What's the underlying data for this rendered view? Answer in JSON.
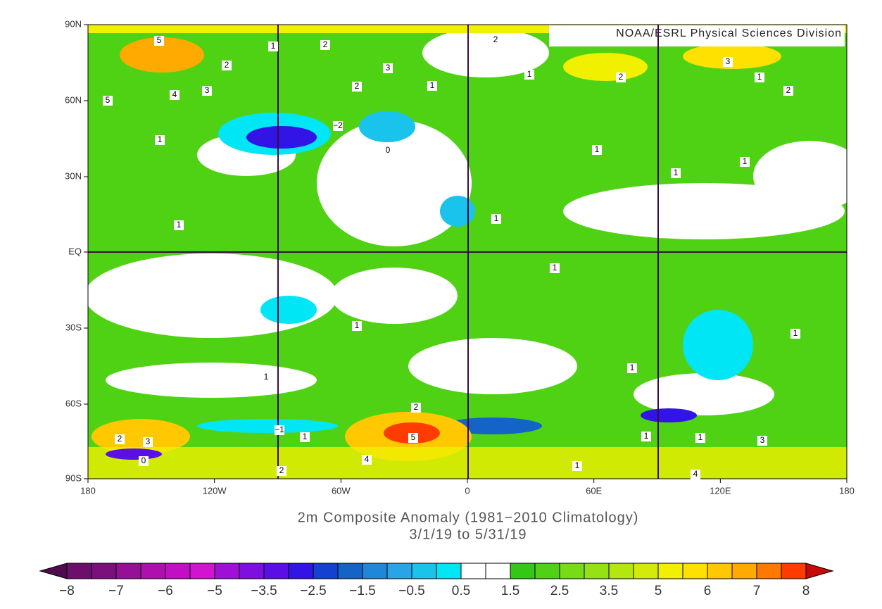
{
  "header": {
    "credit": "NOAA/ESRL Physical Sciences Division"
  },
  "map": {
    "lat_labels": [
      "90N",
      "60N",
      "30N",
      "EQ",
      "30S",
      "60S",
      "90S"
    ],
    "lon_labels": [
      "180",
      "120W",
      "60W",
      "0",
      "60E",
      "120E",
      "180"
    ],
    "contour_labels": [
      "5",
      "2",
      "1",
      "2",
      "3",
      "2",
      "3",
      "1",
      "2",
      "1",
      "5",
      "4",
      "3",
      "2",
      "1",
      "2",
      "1",
      "−2",
      "0",
      "1",
      "1",
      "1",
      "1",
      "1",
      "1",
      "1",
      "1",
      "1",
      "1",
      "2",
      "−1",
      "1",
      "5",
      "4",
      "1",
      "1",
      "3",
      "1",
      "4",
      "2",
      "3",
      "2",
      "0"
    ]
  },
  "caption": {
    "line1": "2m   Composite Anomaly (1981−2010 Climatology)",
    "line2": "3/1/19  to 5/31/19"
  },
  "colorbar": {
    "labels": [
      "−8",
      "−7",
      "−6",
      "−5",
      "−3.5",
      "−2.5",
      "−1.5",
      "−0.5",
      "0.5",
      "1.5",
      "2.5",
      "3.5",
      "5",
      "6",
      "7",
      "8"
    ],
    "colors": [
      "#6b0f6b",
      "#7d0f7d",
      "#960f96",
      "#af0faf",
      "#c30fc3",
      "#d214d2",
      "#a00fd7",
      "#7d0fe1",
      "#5a0fe6",
      "#3214e6",
      "#1441d2",
      "#1464c8",
      "#1e87d7",
      "#28a5e6",
      "#19c3eb",
      "#00e6f5",
      "#ffffff",
      "#ffffff",
      "#32c814",
      "#50d214",
      "#78dc14",
      "#96e114",
      "#b4e60f",
      "#d2eb0a",
      "#f0f000",
      "#ffe100",
      "#ffc800",
      "#ffaa00",
      "#ff7800",
      "#ff3c00"
    ]
  }
}
